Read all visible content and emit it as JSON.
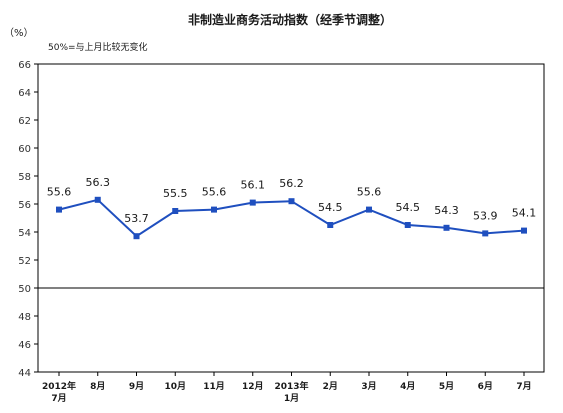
{
  "chart_data": {
    "type": "line",
    "title": "非制造业商务活动指数（经季节调整）",
    "unit": "（%）",
    "note": "50%=与上月比较无变化",
    "categories": [
      "2012年\n7月",
      "8月",
      "9月",
      "10月",
      "11月",
      "12月",
      "2013年\n1月",
      "2月",
      "3月",
      "4月",
      "5月",
      "6月",
      "7月"
    ],
    "values": [
      55.6,
      56.3,
      53.7,
      55.5,
      55.6,
      56.1,
      56.2,
      54.5,
      55.6,
      54.5,
      54.3,
      53.9,
      54.1
    ],
    "ylim": [
      44,
      66
    ],
    "yticks": [
      44,
      46,
      48,
      50,
      52,
      54,
      56,
      58,
      60,
      62,
      64,
      66
    ],
    "baseline": 50,
    "grid": false,
    "legend": "none",
    "colors": {
      "series": "#1f4fbf",
      "axis": "#000000"
    }
  }
}
